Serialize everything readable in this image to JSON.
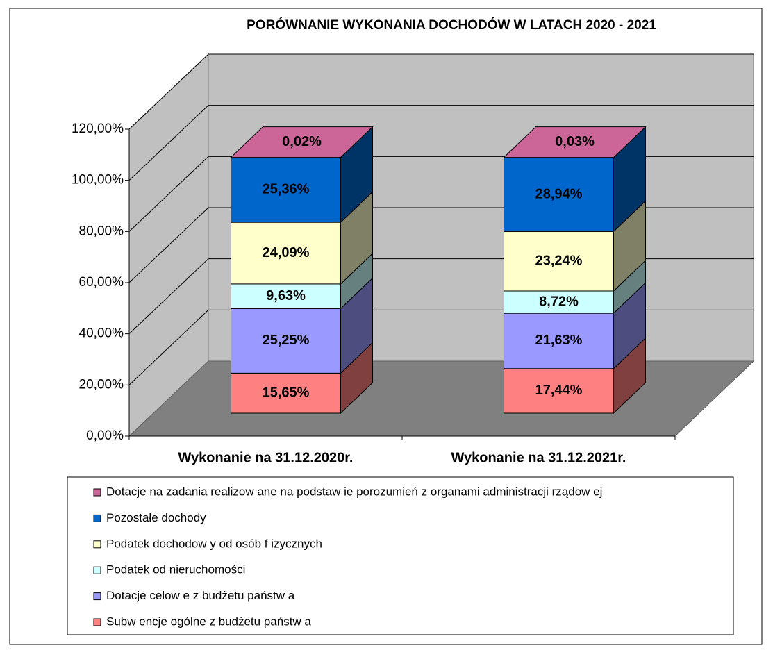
{
  "chart_data": {
    "type": "bar3d_stacked",
    "title": "PORÓWNANIE WYKONANIA DOCHODÓW W LATACH 2020 - 2021",
    "categories": [
      "Wykonanie na 31.12.2020r.",
      "Wykonanie na 31.12.2021r."
    ],
    "series": [
      {
        "name": "Subw encje ogólne z budżetu państw a",
        "color": "#ff8080",
        "values": [
          15.65,
          17.44
        ],
        "value_labels": [
          "15,65%",
          "17,44%"
        ]
      },
      {
        "name": "Dotacje celow e z budżetu państw a",
        "color": "#9999ff",
        "values": [
          25.25,
          21.63
        ],
        "value_labels": [
          "25,25%",
          "21,63%"
        ]
      },
      {
        "name": "Podatek od nieruchomości",
        "color": "#ccffff",
        "values": [
          9.63,
          8.72
        ],
        "value_labels": [
          "9,63%",
          "8,72%"
        ]
      },
      {
        "name": "Podatek dochodow y od osób f izycznych",
        "color": "#ffffcc",
        "values": [
          24.09,
          23.24
        ],
        "value_labels": [
          "24,09%",
          "23,24%"
        ]
      },
      {
        "name": "Pozostałe dochody",
        "color": "#0066cc",
        "values": [
          25.36,
          28.94
        ],
        "value_labels": [
          "25,36%",
          "28,94%"
        ]
      },
      {
        "name": "Dotacje na zadania realizow ane na podstaw ie porozumień z organami administracji rządow ej",
        "color": "#cc6699",
        "values": [
          0.02,
          0.03
        ],
        "value_labels": [
          "0,02%",
          "0,03%"
        ]
      }
    ],
    "ylim": [
      0,
      120
    ],
    "yticks": [
      {
        "value": 0,
        "label": "0,00%"
      },
      {
        "value": 20,
        "label": "20,00%"
      },
      {
        "value": 40,
        "label": "40,00%"
      },
      {
        "value": 60,
        "label": "60,00%"
      },
      {
        "value": 80,
        "label": "80,00%"
      },
      {
        "value": 100,
        "label": "100,00%"
      },
      {
        "value": 120,
        "label": "120,00%"
      }
    ],
    "grid": true,
    "legend": "bottom"
  }
}
